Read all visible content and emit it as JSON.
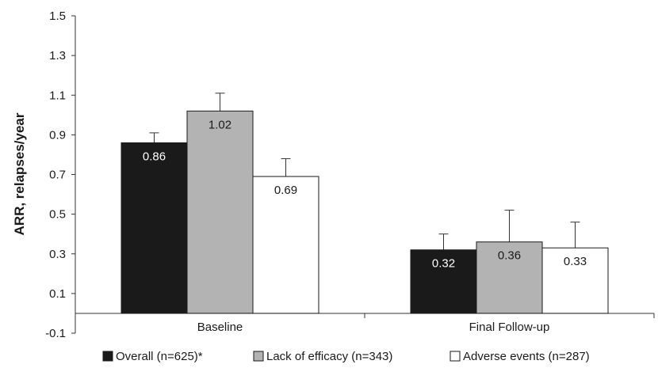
{
  "chart_data": {
    "type": "bar",
    "title": "",
    "xlabel": "",
    "ylabel": "ARR, relapses/year",
    "ylim": [
      -0.1,
      1.5
    ],
    "yticks": [
      -0.1,
      0.1,
      0.3,
      0.5,
      0.7,
      0.9,
      1.1,
      1.3,
      1.5
    ],
    "ytick_labels": [
      "-0.1",
      "0.1",
      "0.3",
      "0.5",
      "0.7",
      "0.9",
      "1.1",
      "1.3",
      "1.5"
    ],
    "categories": [
      "Baseline",
      "Final Follow-up"
    ],
    "grid": false,
    "legend_position": "bottom",
    "series": [
      {
        "name": "Overall (n=625)*",
        "color": "#1a1a1a",
        "label_color": "#ffffff",
        "values": [
          0.86,
          0.32
        ],
        "labels": [
          "0.86",
          "0.32"
        ],
        "error_upper": [
          0.91,
          0.4
        ]
      },
      {
        "name": "Lack of efficacy (n=343)",
        "color": "#b3b3b3",
        "label_color": "#1a1a1a",
        "values": [
          1.02,
          0.36
        ],
        "labels": [
          "1.02",
          "0.36"
        ],
        "error_upper": [
          1.11,
          0.52
        ]
      },
      {
        "name": "Adverse events (n=287)",
        "color": "#ffffff",
        "label_color": "#1a1a1a",
        "values": [
          0.69,
          0.33
        ],
        "labels": [
          "0.69",
          "0.33"
        ],
        "error_upper": [
          0.78,
          0.46
        ]
      }
    ]
  }
}
